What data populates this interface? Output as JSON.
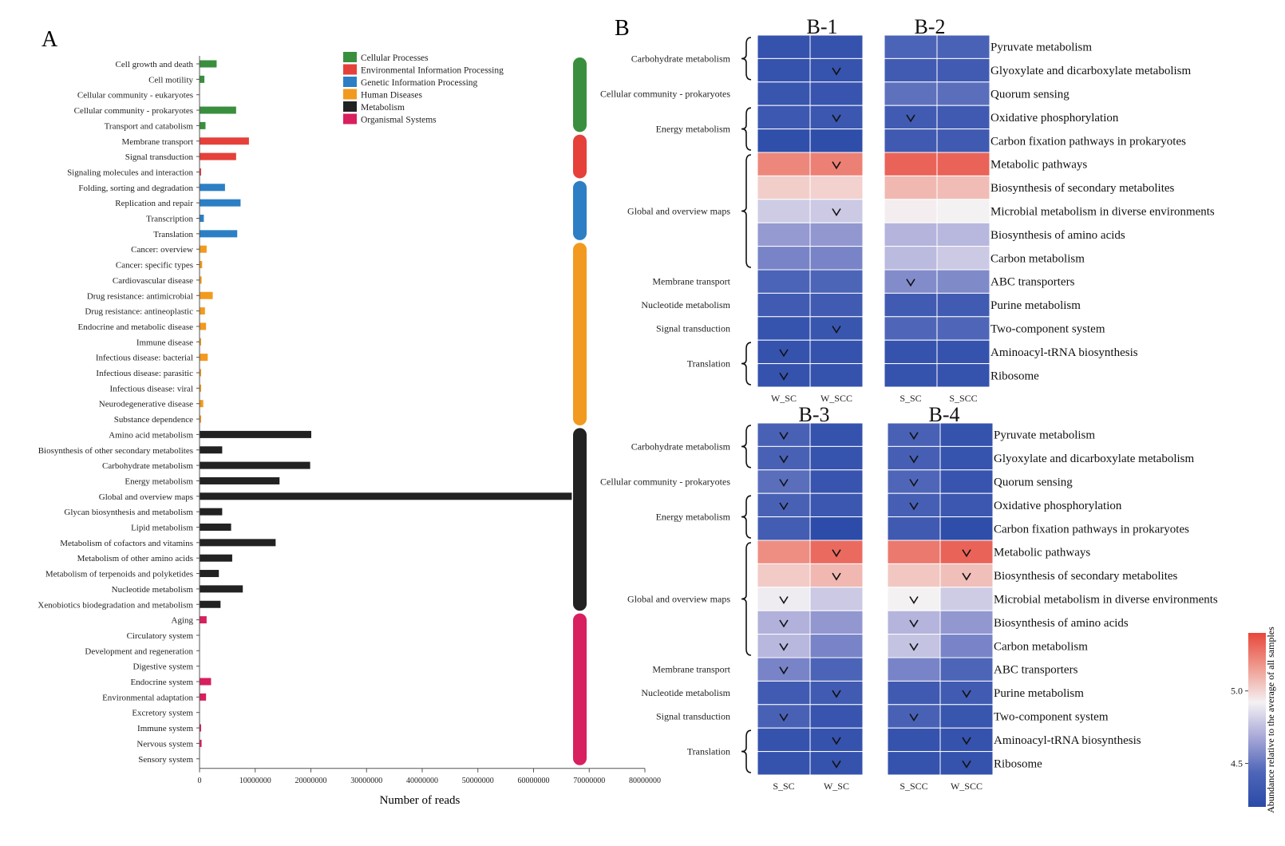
{
  "panel_a": {
    "letter": "A",
    "chart_data": {
      "type": "bar",
      "orientation": "horizontal",
      "title": "",
      "xlabel": "Number of reads",
      "xlim": [
        0,
        80000000
      ],
      "xticks": [
        "0",
        "10000000",
        "20000000",
        "30000000",
        "40000000",
        "50000000",
        "60000000",
        "70000000",
        "80000000"
      ],
      "legend": [
        {
          "key": "cellular",
          "label": "Cellular Processes",
          "color": "#3a8f3e"
        },
        {
          "key": "environmental",
          "label": "Environmental Information Processing",
          "color": "#e5403a"
        },
        {
          "key": "genetic",
          "label": "Genetic Information Processing",
          "color": "#2c7fc4"
        },
        {
          "key": "human",
          "label": "Human Diseases",
          "color": "#f29a1f"
        },
        {
          "key": "metabolism",
          "label": "Metabolism",
          "color": "#222222"
        },
        {
          "key": "organismal",
          "label": "Organismal Systems",
          "color": "#d81f5f"
        }
      ],
      "categories": [
        {
          "label": "Cell growth and death",
          "value": 3000000,
          "group": "cellular"
        },
        {
          "label": "Cell motility",
          "value": 800000,
          "group": "cellular"
        },
        {
          "label": "Cellular community - eukaryotes",
          "value": 0,
          "group": "cellular"
        },
        {
          "label": "Cellular community - prokaryotes",
          "value": 6500000,
          "group": "cellular"
        },
        {
          "label": "Transport and catabolism",
          "value": 1000000,
          "group": "cellular"
        },
        {
          "label": "Membrane transport",
          "value": 8800000,
          "group": "environmental"
        },
        {
          "label": "Signal transduction",
          "value": 6500000,
          "group": "environmental"
        },
        {
          "label": "Signaling molecules and interaction",
          "value": 100000,
          "group": "environmental"
        },
        {
          "label": "Folding, sorting and degradation",
          "value": 4500000,
          "group": "genetic"
        },
        {
          "label": "Replication and repair",
          "value": 7300000,
          "group": "genetic"
        },
        {
          "label": "Transcription",
          "value": 700000,
          "group": "genetic"
        },
        {
          "label": "Translation",
          "value": 6700000,
          "group": "genetic"
        },
        {
          "label": "Cancer: overview",
          "value": 1200000,
          "group": "human"
        },
        {
          "label": "Cancer: specific types",
          "value": 400000,
          "group": "human"
        },
        {
          "label": "Cardiovascular disease",
          "value": 300000,
          "group": "human"
        },
        {
          "label": "Drug resistance: antimicrobial",
          "value": 2300000,
          "group": "human"
        },
        {
          "label": "Drug resistance: antineoplastic",
          "value": 900000,
          "group": "human"
        },
        {
          "label": "Endocrine and metabolic disease",
          "value": 1100000,
          "group": "human"
        },
        {
          "label": "Immune disease",
          "value": 50000,
          "group": "human"
        },
        {
          "label": "Infectious disease: bacterial",
          "value": 1400000,
          "group": "human"
        },
        {
          "label": "Infectious disease: parasitic",
          "value": 150000,
          "group": "human"
        },
        {
          "label": "Infectious disease: viral",
          "value": 200000,
          "group": "human"
        },
        {
          "label": "Neurodegenerative disease",
          "value": 600000,
          "group": "human"
        },
        {
          "label": "Substance dependence",
          "value": 50000,
          "group": "human"
        },
        {
          "label": "Amino acid metabolism",
          "value": 20000000,
          "group": "metabolism"
        },
        {
          "label": "Biosynthesis of other secondary metabolites",
          "value": 4000000,
          "group": "metabolism"
        },
        {
          "label": "Carbohydrate metabolism",
          "value": 19800000,
          "group": "metabolism"
        },
        {
          "label": "Energy metabolism",
          "value": 14300000,
          "group": "metabolism"
        },
        {
          "label": "Global and overview maps",
          "value": 66800000,
          "group": "metabolism"
        },
        {
          "label": "Glycan biosynthesis and metabolism",
          "value": 4000000,
          "group": "metabolism"
        },
        {
          "label": "Lipid metabolism",
          "value": 5600000,
          "group": "metabolism"
        },
        {
          "label": "Metabolism of cofactors and vitamins",
          "value": 13600000,
          "group": "metabolism"
        },
        {
          "label": "Metabolism of other amino acids",
          "value": 5800000,
          "group": "metabolism"
        },
        {
          "label": "Metabolism of terpenoids and polyketides",
          "value": 3400000,
          "group": "metabolism"
        },
        {
          "label": "Nucleotide metabolism",
          "value": 7700000,
          "group": "metabolism"
        },
        {
          "label": "Xenobiotics biodegradation and metabolism",
          "value": 3700000,
          "group": "metabolism"
        },
        {
          "label": "Aging",
          "value": 1200000,
          "group": "organismal"
        },
        {
          "label": "Circulatory system",
          "value": 0,
          "group": "organismal"
        },
        {
          "label": "Development and regeneration",
          "value": 0,
          "group": "organismal"
        },
        {
          "label": "Digestive system",
          "value": 0,
          "group": "organismal"
        },
        {
          "label": "Endocrine system",
          "value": 2000000,
          "group": "organismal"
        },
        {
          "label": "Environmental adaptation",
          "value": 1100000,
          "group": "organismal"
        },
        {
          "label": "Excretory system",
          "value": 0,
          "group": "organismal"
        },
        {
          "label": "Immune system",
          "value": 150000,
          "group": "organismal"
        },
        {
          "label": "Nervous system",
          "value": 300000,
          "group": "organismal"
        },
        {
          "label": "Sensory system",
          "value": 0,
          "group": "organismal"
        }
      ]
    }
  },
  "panel_b": {
    "letter": "B",
    "row_groups": [
      {
        "label": "Carbohydrate metabolism",
        "rows": [
          0,
          1
        ],
        "brace": true
      },
      {
        "label": "Cellular community - prokaryotes",
        "rows": [
          2,
          2
        ],
        "brace": false
      },
      {
        "label": "Energy metabolism",
        "rows": [
          3,
          4
        ],
        "brace": true
      },
      {
        "label": "Global and overview maps",
        "rows": [
          5,
          9
        ],
        "brace": true
      },
      {
        "label": "Membrane transport",
        "rows": [
          10,
          10
        ],
        "brace": false
      },
      {
        "label": "Nucleotide metabolism",
        "rows": [
          11,
          11
        ],
        "brace": false
      },
      {
        "label": "Signal transduction",
        "rows": [
          12,
          12
        ],
        "brace": false
      },
      {
        "label": "Translation",
        "rows": [
          13,
          14
        ],
        "brace": true
      }
    ],
    "pathways": [
      "Pyruvate metabolism",
      "Glyoxylate and dicarboxylate metabolism",
      "Quorum sensing",
      "Oxidative phosphorylation",
      "Carbon fixation pathways in prokaryotes",
      "Metabolic pathways",
      "Biosynthesis of secondary metabolites",
      "Microbial metabolism in diverse environments",
      "Biosynthesis of amino acids",
      "Carbon metabolism",
      "ABC transporters",
      "Purine metabolism",
      "Two-component system",
      "Aminoacyl-tRNA biosynthesis",
      "Ribosome"
    ],
    "colorbar": {
      "label": "Abundance relative to the average of all samples",
      "min": 4.2,
      "max": 5.4,
      "ticks": [
        "4.5",
        "5.0"
      ],
      "colors": [
        "#2a4aa8",
        "#4f66b8",
        "#a8a8d8",
        "#f4f1f3",
        "#ef9c91",
        "#e8473c"
      ]
    },
    "chart_data": [
      {
        "type": "heatmap",
        "title": "B-1",
        "columns": [
          "W_SC",
          "W_SCC"
        ],
        "values": [
          [
            4.27,
            4.27
          ],
          [
            4.27,
            4.28
          ],
          [
            4.3,
            4.29
          ],
          [
            4.32,
            4.31
          ],
          [
            4.24,
            4.23
          ],
          [
            5.22,
            5.24
          ],
          [
            5.02,
            5.01
          ],
          [
            4.8,
            4.79
          ],
          [
            4.63,
            4.62
          ],
          [
            4.55,
            4.55
          ],
          [
            4.42,
            4.43
          ],
          [
            4.35,
            4.35
          ],
          [
            4.28,
            4.3
          ],
          [
            4.27,
            4.27
          ],
          [
            4.27,
            4.27
          ]
        ],
        "marks": [
          [
            1,
            1
          ],
          [
            3,
            1
          ],
          [
            5,
            1
          ],
          [
            7,
            1
          ],
          [
            12,
            1
          ],
          [
            13,
            0
          ],
          [
            14,
            0
          ]
        ]
      },
      {
        "type": "heatmap",
        "title": "B-2",
        "columns": [
          "S_SC",
          "S_SCC"
        ],
        "values": [
          [
            4.42,
            4.41
          ],
          [
            4.35,
            4.35
          ],
          [
            4.48,
            4.47
          ],
          [
            4.35,
            4.34
          ],
          [
            4.34,
            4.34
          ],
          [
            5.32,
            5.32
          ],
          [
            5.08,
            5.07
          ],
          [
            4.93,
            4.92
          ],
          [
            4.72,
            4.73
          ],
          [
            4.74,
            4.79
          ],
          [
            4.58,
            4.57
          ],
          [
            4.35,
            4.35
          ],
          [
            4.44,
            4.44
          ],
          [
            4.27,
            4.27
          ],
          [
            4.27,
            4.27
          ]
        ],
        "marks": [
          [
            3,
            0
          ],
          [
            10,
            0
          ]
        ]
      },
      {
        "type": "heatmap",
        "title": "B-3",
        "columns": [
          "S_SC",
          "W_SC"
        ],
        "values": [
          [
            4.4,
            4.27
          ],
          [
            4.4,
            4.28
          ],
          [
            4.47,
            4.29
          ],
          [
            4.4,
            4.31
          ],
          [
            4.36,
            4.22
          ],
          [
            5.2,
            5.3
          ],
          [
            5.03,
            5.08
          ],
          [
            4.9,
            4.79
          ],
          [
            4.71,
            4.62
          ],
          [
            4.73,
            4.55
          ],
          [
            4.55,
            4.42
          ],
          [
            4.35,
            4.35
          ],
          [
            4.4,
            4.29
          ],
          [
            4.27,
            4.27
          ],
          [
            4.27,
            4.27
          ]
        ],
        "marks": [
          [
            0,
            0
          ],
          [
            1,
            0
          ],
          [
            2,
            0
          ],
          [
            3,
            0
          ],
          [
            5,
            1
          ],
          [
            6,
            1
          ],
          [
            7,
            0
          ],
          [
            8,
            0
          ],
          [
            9,
            0
          ],
          [
            10,
            0
          ],
          [
            11,
            1
          ],
          [
            12,
            0
          ],
          [
            13,
            1
          ],
          [
            14,
            1
          ]
        ]
      },
      {
        "type": "heatmap",
        "title": "B-4",
        "columns": [
          "S_SCC",
          "W_SCC"
        ],
        "values": [
          [
            4.4,
            4.27
          ],
          [
            4.38,
            4.28
          ],
          [
            4.44,
            4.29
          ],
          [
            4.38,
            4.31
          ],
          [
            4.34,
            4.23
          ],
          [
            5.26,
            5.32
          ],
          [
            5.04,
            5.06
          ],
          [
            4.92,
            4.8
          ],
          [
            4.72,
            4.62
          ],
          [
            4.77,
            4.55
          ],
          [
            4.55,
            4.43
          ],
          [
            4.34,
            4.35
          ],
          [
            4.4,
            4.3
          ],
          [
            4.27,
            4.27
          ],
          [
            4.27,
            4.27
          ]
        ],
        "marks": [
          [
            0,
            0
          ],
          [
            1,
            0
          ],
          [
            2,
            0
          ],
          [
            3,
            0
          ],
          [
            5,
            1
          ],
          [
            6,
            1
          ],
          [
            7,
            0
          ],
          [
            8,
            0
          ],
          [
            9,
            0
          ],
          [
            11,
            1
          ],
          [
            12,
            0
          ],
          [
            13,
            1
          ],
          [
            14,
            1
          ]
        ]
      }
    ]
  }
}
